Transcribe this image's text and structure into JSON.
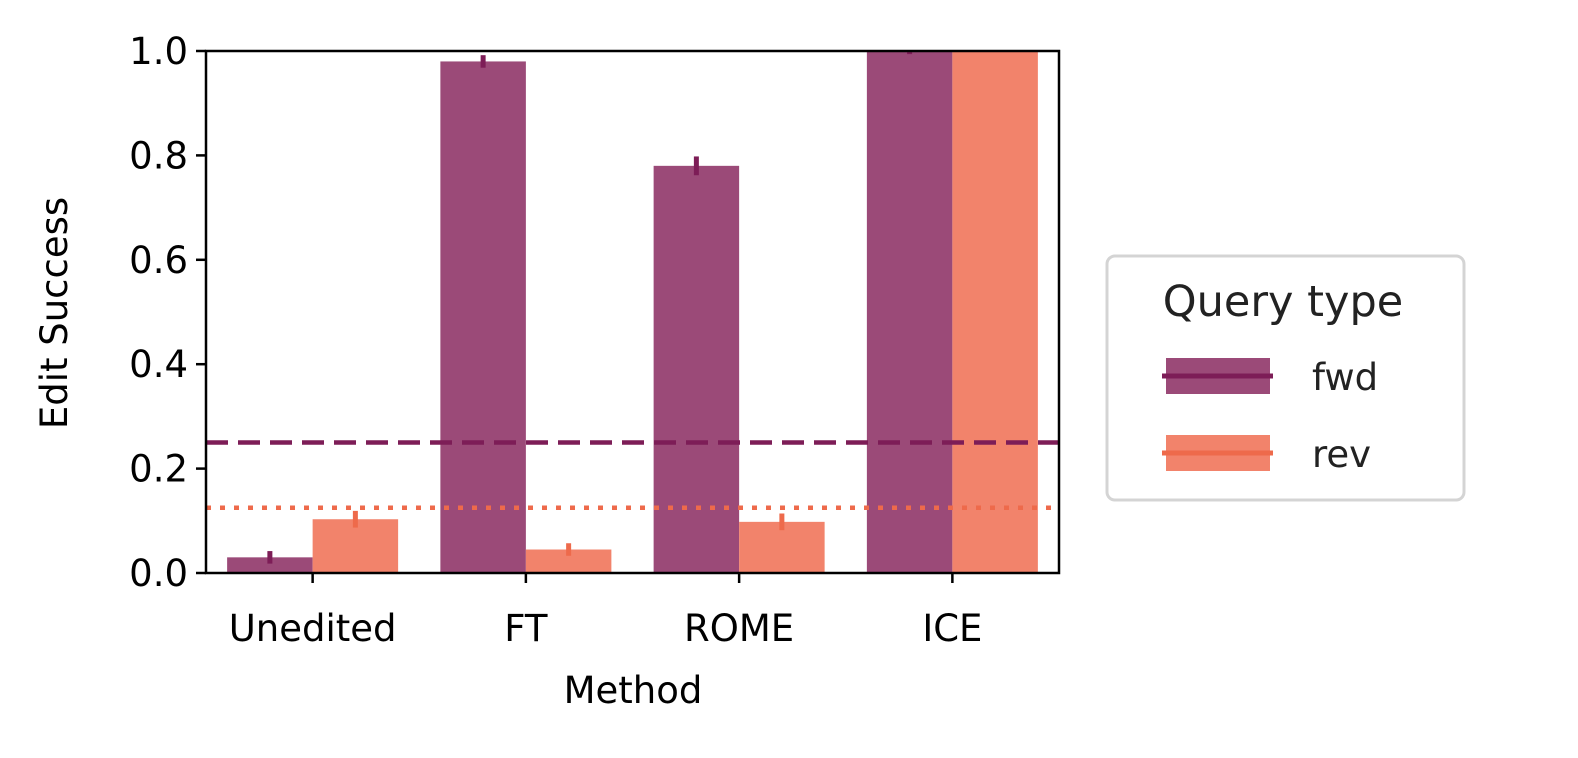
{
  "chart_data": {
    "type": "bar",
    "xlabel": "Method",
    "ylabel": "Edit Success",
    "categories": [
      "Unedited",
      "FT",
      "ROME",
      "ICE"
    ],
    "ylim": [
      0,
      1.0
    ],
    "yticks": [
      "0.0",
      "0.2",
      "0.4",
      "0.6",
      "0.8",
      "1.0"
    ],
    "series": [
      {
        "name": "fwd",
        "values": [
          0.03,
          0.98,
          0.78,
          1.0
        ],
        "errors": [
          0.012,
          0.012,
          0.018,
          0.006
        ],
        "color": "#9b4a78",
        "line_color": "#7d1d57"
      },
      {
        "name": "rev",
        "values": [
          0.103,
          0.045,
          0.098,
          1.0
        ],
        "errors": [
          0.016,
          0.012,
          0.016,
          0.0
        ],
        "color": "#f2836b",
        "line_color": "#ee6a4b"
      }
    ],
    "reference_lines": [
      {
        "series": "fwd",
        "value": 0.25,
        "style": "dashed",
        "color": "#7d1d57"
      },
      {
        "series": "rev",
        "value": 0.125,
        "style": "dotted",
        "color": "#ee6a4b"
      }
    ],
    "legend": {
      "title": "Query type",
      "placement": "right"
    },
    "grid": false
  }
}
